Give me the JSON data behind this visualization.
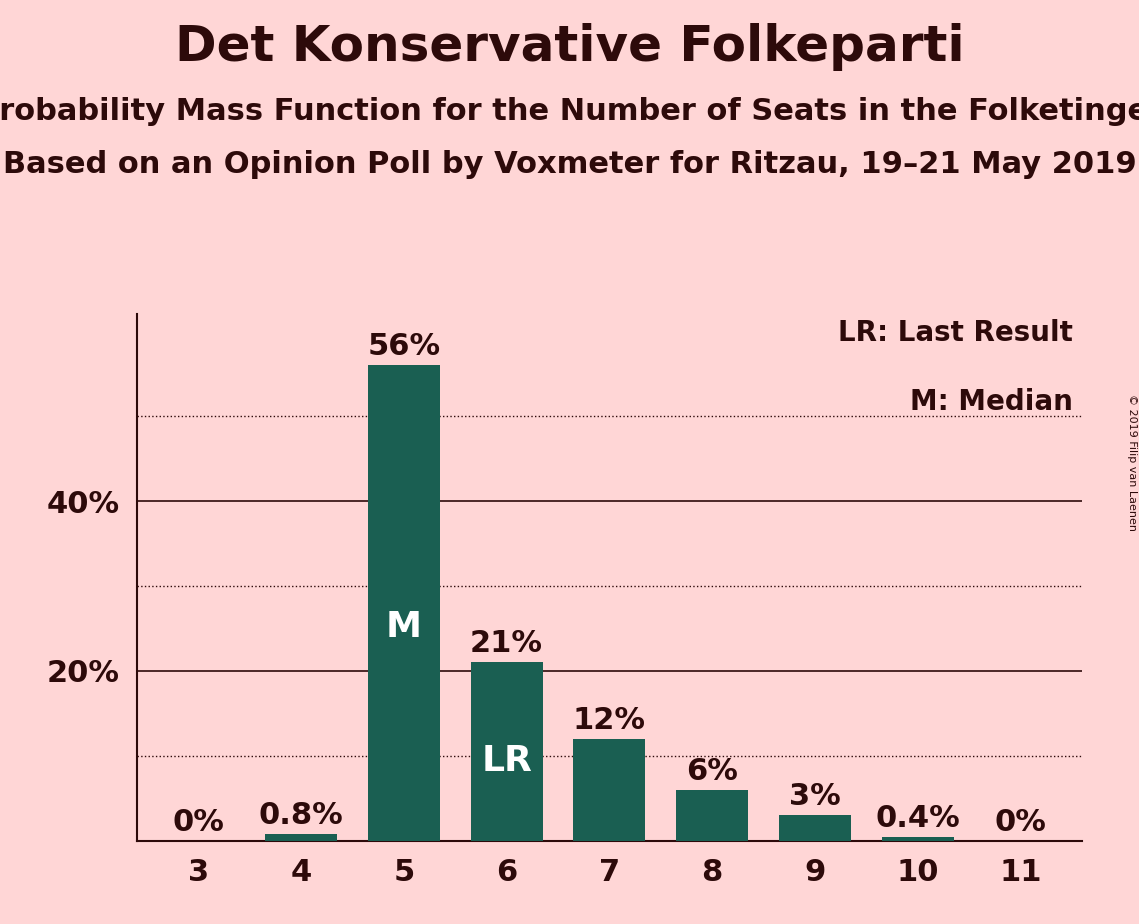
{
  "title": "Det Konservative Folkeparti",
  "subtitle1": "Probability Mass Function for the Number of Seats in the Folketinget",
  "subtitle2": "Based on an Opinion Poll by Voxmeter for Ritzau, 19–21 May 2019",
  "copyright": "© 2019 Filip van Laenen",
  "categories": [
    3,
    4,
    5,
    6,
    7,
    8,
    9,
    10,
    11
  ],
  "values": [
    0.0,
    0.8,
    56.0,
    21.0,
    12.0,
    6.0,
    3.0,
    0.4,
    0.0
  ],
  "bar_color": "#1a5f52",
  "background_color": "#ffd6d6",
  "label_color": "#2d0a0a",
  "bar_labels": [
    "0%",
    "0.8%",
    "56%",
    "21%",
    "12%",
    "6%",
    "3%",
    "0.4%",
    "0%"
  ],
  "median_bar_idx": 2,
  "lr_bar_idx": 3,
  "median_label": "M",
  "lr_label": "LR",
  "legend_lr": "LR: Last Result",
  "legend_m": "M: Median",
  "yticks_solid": [
    20,
    40
  ],
  "ytick_labels": [
    "20%",
    "40%"
  ],
  "dotted_lines": [
    10,
    30,
    50
  ],
  "ylim": [
    0,
    62
  ],
  "title_fontsize": 36,
  "subtitle_fontsize": 22,
  "tick_fontsize": 22,
  "bar_label_fontsize": 22,
  "legend_fontsize": 20,
  "inner_label_fontsize": 26
}
